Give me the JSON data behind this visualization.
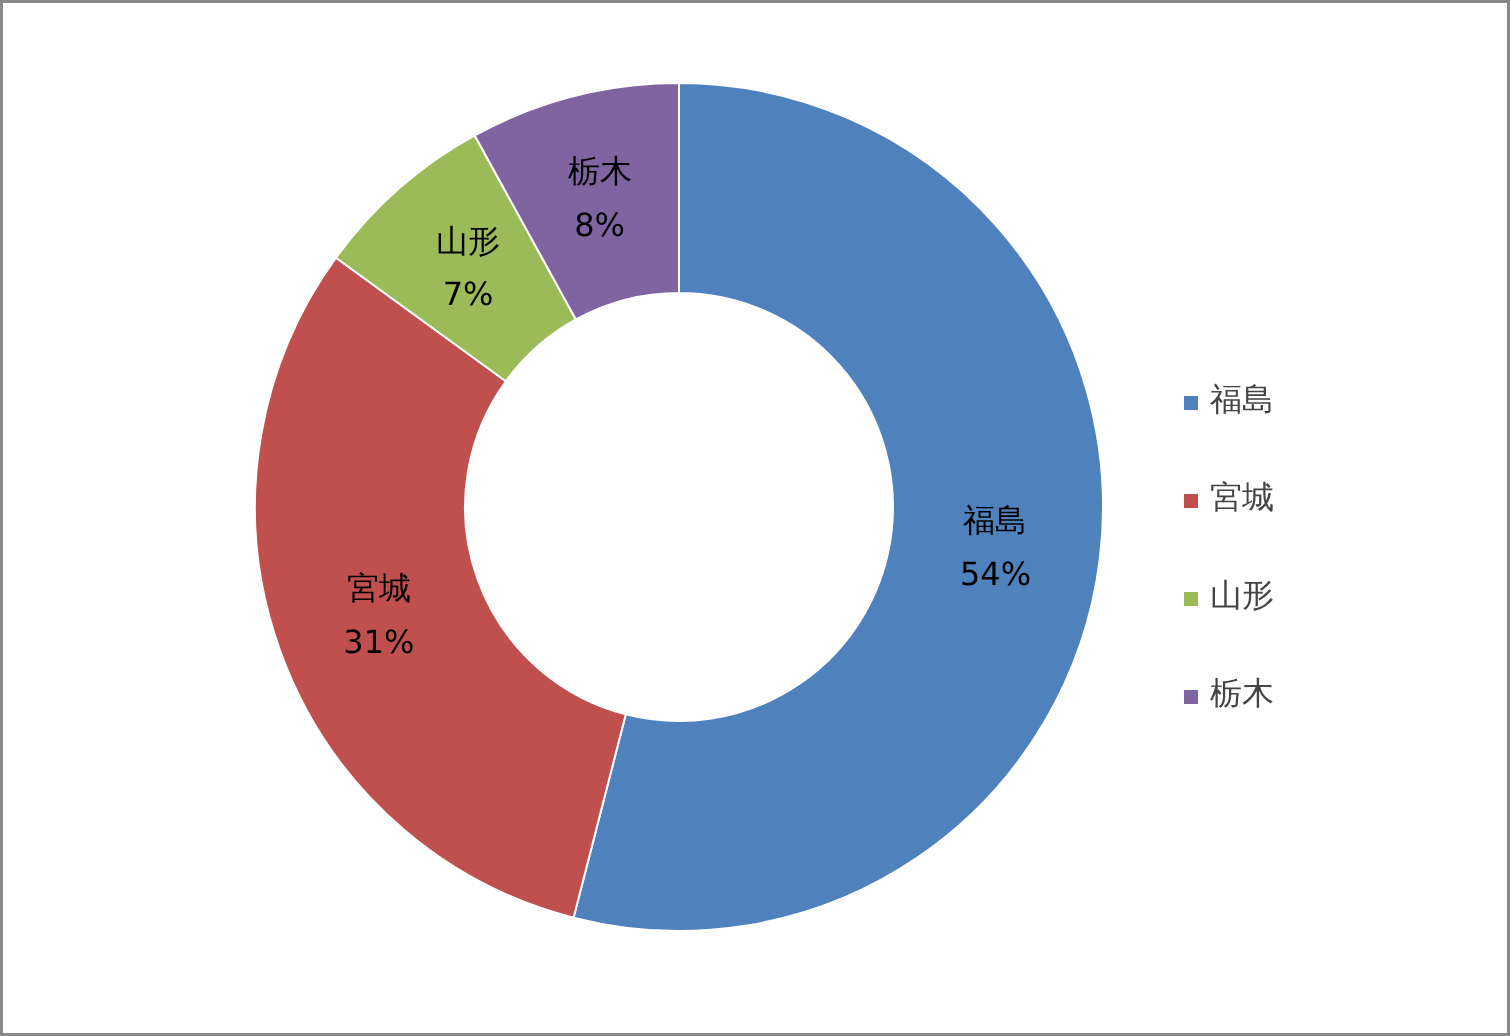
{
  "chart_data": {
    "type": "donut",
    "categories": [
      "福島",
      "宮城",
      "山形",
      "栃木"
    ],
    "values": [
      54,
      31,
      7,
      8
    ],
    "colors": [
      "#4f81bd",
      "#c0504d",
      "#9bbb59",
      "#8064a2"
    ],
    "value_labels": [
      "54%",
      "31%",
      "7%",
      "8%"
    ],
    "legend": "right"
  }
}
